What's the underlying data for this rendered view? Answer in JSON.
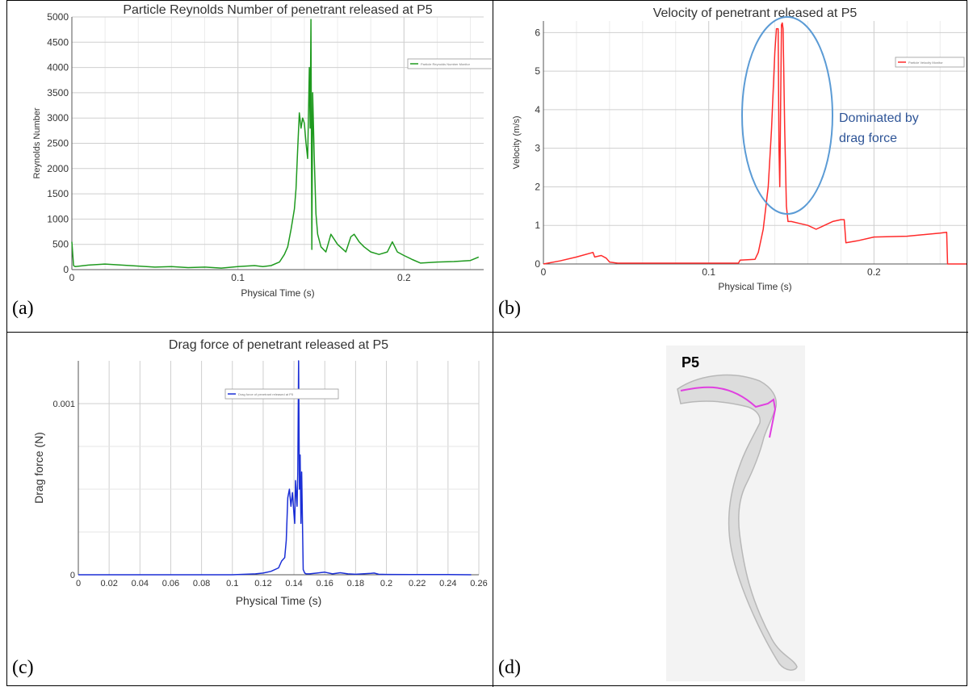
{
  "panels": {
    "a": {
      "label": "(a)"
    },
    "b": {
      "label": "(b)"
    },
    "c": {
      "label": "(c)"
    },
    "d": {
      "label": "(d)"
    }
  },
  "colors": {
    "green": "#1f9a1f",
    "red": "#ff2a2a",
    "blue": "#1b2fd6",
    "ellipse": "#5b9bd5",
    "annotation": "#2f5597",
    "magenta": "#e040e0"
  },
  "chart_data": [
    {
      "id": "a",
      "type": "line",
      "title": "Particle Reynolds Number of penetrant released at P5",
      "xlabel": "Physical Time (s)",
      "ylabel": "Reynolds Number",
      "xlim": [
        0,
        0.248
      ],
      "ylim": [
        0,
        5000
      ],
      "xticks": [
        0,
        0.1,
        0.2
      ],
      "xtick_labels": [
        "0",
        "0.1",
        "0.2"
      ],
      "yticks": [
        0,
        500,
        1000,
        1500,
        2000,
        2500,
        3000,
        3500,
        4000,
        4500,
        5000
      ],
      "ytick_labels": [
        "0",
        "500",
        "1000",
        "1500",
        "2000",
        "2500",
        "3000",
        "3500",
        "4000",
        "4500",
        "5000"
      ],
      "grid": true,
      "legend": {
        "position": "top-right",
        "entries": [
          "Particle Reynolds Number Monitor"
        ]
      },
      "series": [
        {
          "name": "Particle Reynolds Number Monitor",
          "color": "#1f9a1f",
          "x": [
            0,
            0.001,
            0.002,
            0.01,
            0.02,
            0.03,
            0.04,
            0.05,
            0.06,
            0.07,
            0.08,
            0.09,
            0.1,
            0.11,
            0.115,
            0.12,
            0.125,
            0.128,
            0.13,
            0.132,
            0.134,
            0.135,
            0.136,
            0.137,
            0.138,
            0.139,
            0.14,
            0.141,
            0.142,
            0.143,
            0.1435,
            0.144,
            0.1445,
            0.145,
            0.146,
            0.147,
            0.148,
            0.15,
            0.153,
            0.156,
            0.16,
            0.165,
            0.168,
            0.17,
            0.173,
            0.176,
            0.18,
            0.185,
            0.19,
            0.193,
            0.196,
            0.2,
            0.205,
            0.21,
            0.22,
            0.23,
            0.24,
            0.245
          ],
          "y": [
            550,
            80,
            60,
            90,
            110,
            90,
            70,
            50,
            60,
            40,
            50,
            30,
            60,
            80,
            60,
            80,
            150,
            300,
            450,
            800,
            1200,
            1600,
            2400,
            3100,
            2800,
            3000,
            2900,
            2500,
            2200,
            4000,
            2800,
            4950,
            400,
            3500,
            2200,
            1100,
            700,
            450,
            350,
            700,
            500,
            350,
            650,
            700,
            550,
            450,
            350,
            300,
            350,
            550,
            350,
            280,
            200,
            130,
            150,
            160,
            180,
            250
          ]
        }
      ]
    },
    {
      "id": "b",
      "type": "line",
      "title": "Velocity of penetrant released at P5",
      "xlabel": "Physical Time (s)",
      "ylabel": "Velocity (m/s)",
      "xlim": [
        0,
        0.256
      ],
      "ylim": [
        0,
        6.3
      ],
      "xticks": [
        0,
        0.1,
        0.2
      ],
      "xtick_labels": [
        "0",
        "0.1",
        "0.2"
      ],
      "yticks": [
        0,
        1,
        2,
        3,
        4,
        5,
        6
      ],
      "ytick_labels": [
        "0",
        "1",
        "2",
        "3",
        "4",
        "5",
        "6"
      ],
      "grid": true,
      "legend": {
        "position": "top-right",
        "entries": [
          "Particle Velocity Monitor"
        ]
      },
      "annotations": [
        "Dominated by",
        "drag force"
      ],
      "series": [
        {
          "name": "Particle Velocity Monitor",
          "color": "#ff2a2a",
          "x": [
            0,
            0.01,
            0.02,
            0.03,
            0.031,
            0.035,
            0.038,
            0.04,
            0.045,
            0.05,
            0.1,
            0.118,
            0.119,
            0.128,
            0.13,
            0.133,
            0.136,
            0.138,
            0.14,
            0.141,
            0.142,
            0.1425,
            0.143,
            0.1435,
            0.144,
            0.1445,
            0.145,
            0.146,
            0.147,
            0.148,
            0.149,
            0.15,
            0.155,
            0.16,
            0.165,
            0.17,
            0.175,
            0.18,
            0.182,
            0.183,
            0.19,
            0.2,
            0.22,
            0.24,
            0.244,
            0.2445,
            0.256
          ],
          "y": [
            0,
            0.08,
            0.18,
            0.3,
            0.18,
            0.22,
            0.15,
            0.05,
            0.02,
            0.02,
            0.02,
            0.02,
            0.1,
            0.12,
            0.3,
            0.9,
            2.0,
            3.5,
            5.5,
            6.1,
            6.1,
            3.0,
            2.0,
            4.0,
            6.2,
            6.25,
            6.1,
            3.5,
            1.5,
            1.1,
            1.1,
            1.1,
            1.05,
            1.0,
            0.9,
            1.0,
            1.1,
            1.15,
            1.15,
            0.55,
            0.6,
            0.7,
            0.72,
            0.8,
            0.82,
            0.0,
            0.0
          ]
        }
      ]
    },
    {
      "id": "c",
      "type": "line",
      "title": "Drag force of penetrant released at P5",
      "xlabel": "Physical Time (s)",
      "ylabel": "Drag force (N)",
      "xlim": [
        0,
        0.26
      ],
      "ylim": [
        0,
        0.00125
      ],
      "xticks": [
        0,
        0.02,
        0.04,
        0.06,
        0.08,
        0.1,
        0.12,
        0.14,
        0.16,
        0.18,
        0.2,
        0.22,
        0.24,
        0.26
      ],
      "xtick_labels": [
        "0",
        "0.02",
        "0.04",
        "0.06",
        "0.08",
        "0.1",
        "0.12",
        "0.14",
        "0.16",
        "0.18",
        "0.2",
        "0.22",
        "0.24",
        "0.26"
      ],
      "yticks": [
        0,
        0.001
      ],
      "ytick_labels": [
        "0",
        "0.001"
      ],
      "grid": true,
      "legend": {
        "position": "top-center",
        "entries": [
          "Drag force of penetrant released at P5"
        ]
      },
      "series": [
        {
          "name": "Drag force of penetrant released at P5",
          "color": "#1b2fd6",
          "x": [
            0,
            0.02,
            0.05,
            0.08,
            0.1,
            0.115,
            0.12,
            0.125,
            0.13,
            0.132,
            0.134,
            0.135,
            0.136,
            0.137,
            0.138,
            0.139,
            0.14,
            0.1405,
            0.141,
            0.142,
            0.1425,
            0.143,
            0.1435,
            0.144,
            0.1445,
            0.145,
            0.146,
            0.147,
            0.148,
            0.15,
            0.155,
            0.16,
            0.165,
            0.17,
            0.175,
            0.18,
            0.19,
            0.192,
            0.195,
            0.2,
            0.22,
            0.24,
            0.255
          ],
          "y": [
            0,
            0,
            0,
            0,
            0,
            5e-06,
            1e-05,
            2e-05,
            4e-05,
            8e-05,
            0.0001,
            0.0002,
            0.00045,
            0.0005,
            0.0004,
            0.00048,
            0.00035,
            0.0003,
            0.00055,
            0.0004,
            0.0006,
            0.00125,
            0.0005,
            0.0007,
            0.0003,
            0.0006,
            3e-05,
            1e-05,
            5e-06,
            5e-06,
            1e-05,
            1.5e-05,
            5e-06,
            1.2e-05,
            5e-06,
            3e-06,
            8e-06,
            1e-05,
            3e-06,
            2e-06,
            1e-06,
            1e-06,
            0
          ]
        }
      ]
    }
  ],
  "diagram": {
    "label": "P5"
  }
}
